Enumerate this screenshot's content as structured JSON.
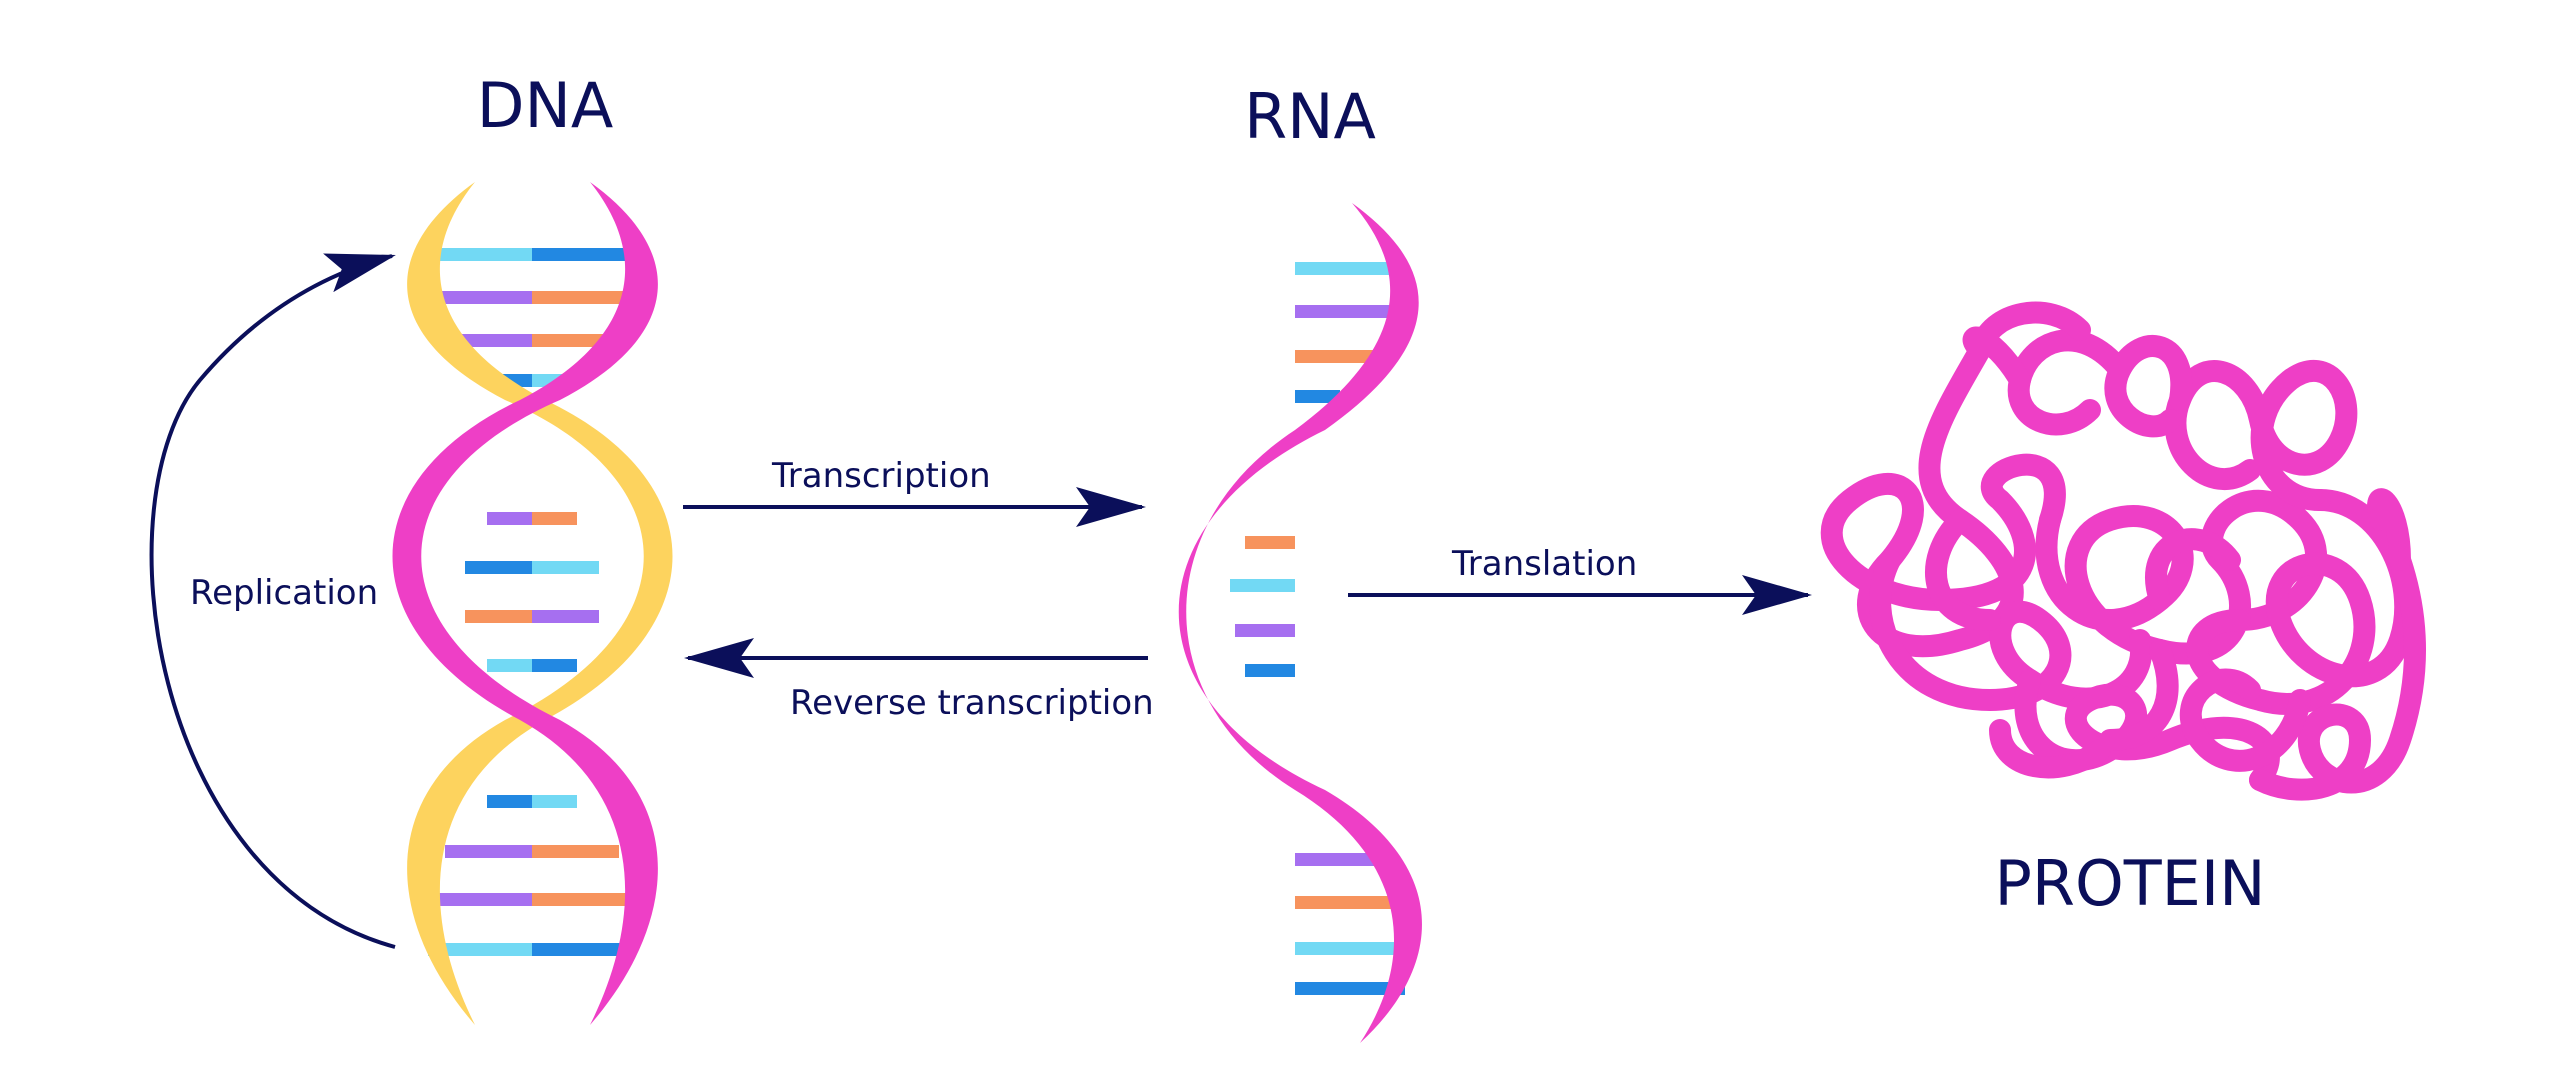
{
  "colors": {
    "navy": "#0b0f5a",
    "magenta": "#ee3fc6",
    "yellow": "#fdd35e",
    "light_blue": "#72d9f4",
    "blue": "#2288e2",
    "purple": "#a66ff0",
    "orange": "#f7935d",
    "background": "#ffffff"
  },
  "titles": {
    "dna": "DNA",
    "rna": "RNA",
    "protein": "PROTEIN"
  },
  "processes": {
    "replication": "Replication",
    "transcription": "Transcription",
    "reverse_transcription": "Reverse transcription",
    "translation": "Translation"
  },
  "icons": {
    "dna": "dna-double-helix-icon",
    "rna": "rna-single-strand-icon",
    "protein": "folded-protein-icon"
  }
}
